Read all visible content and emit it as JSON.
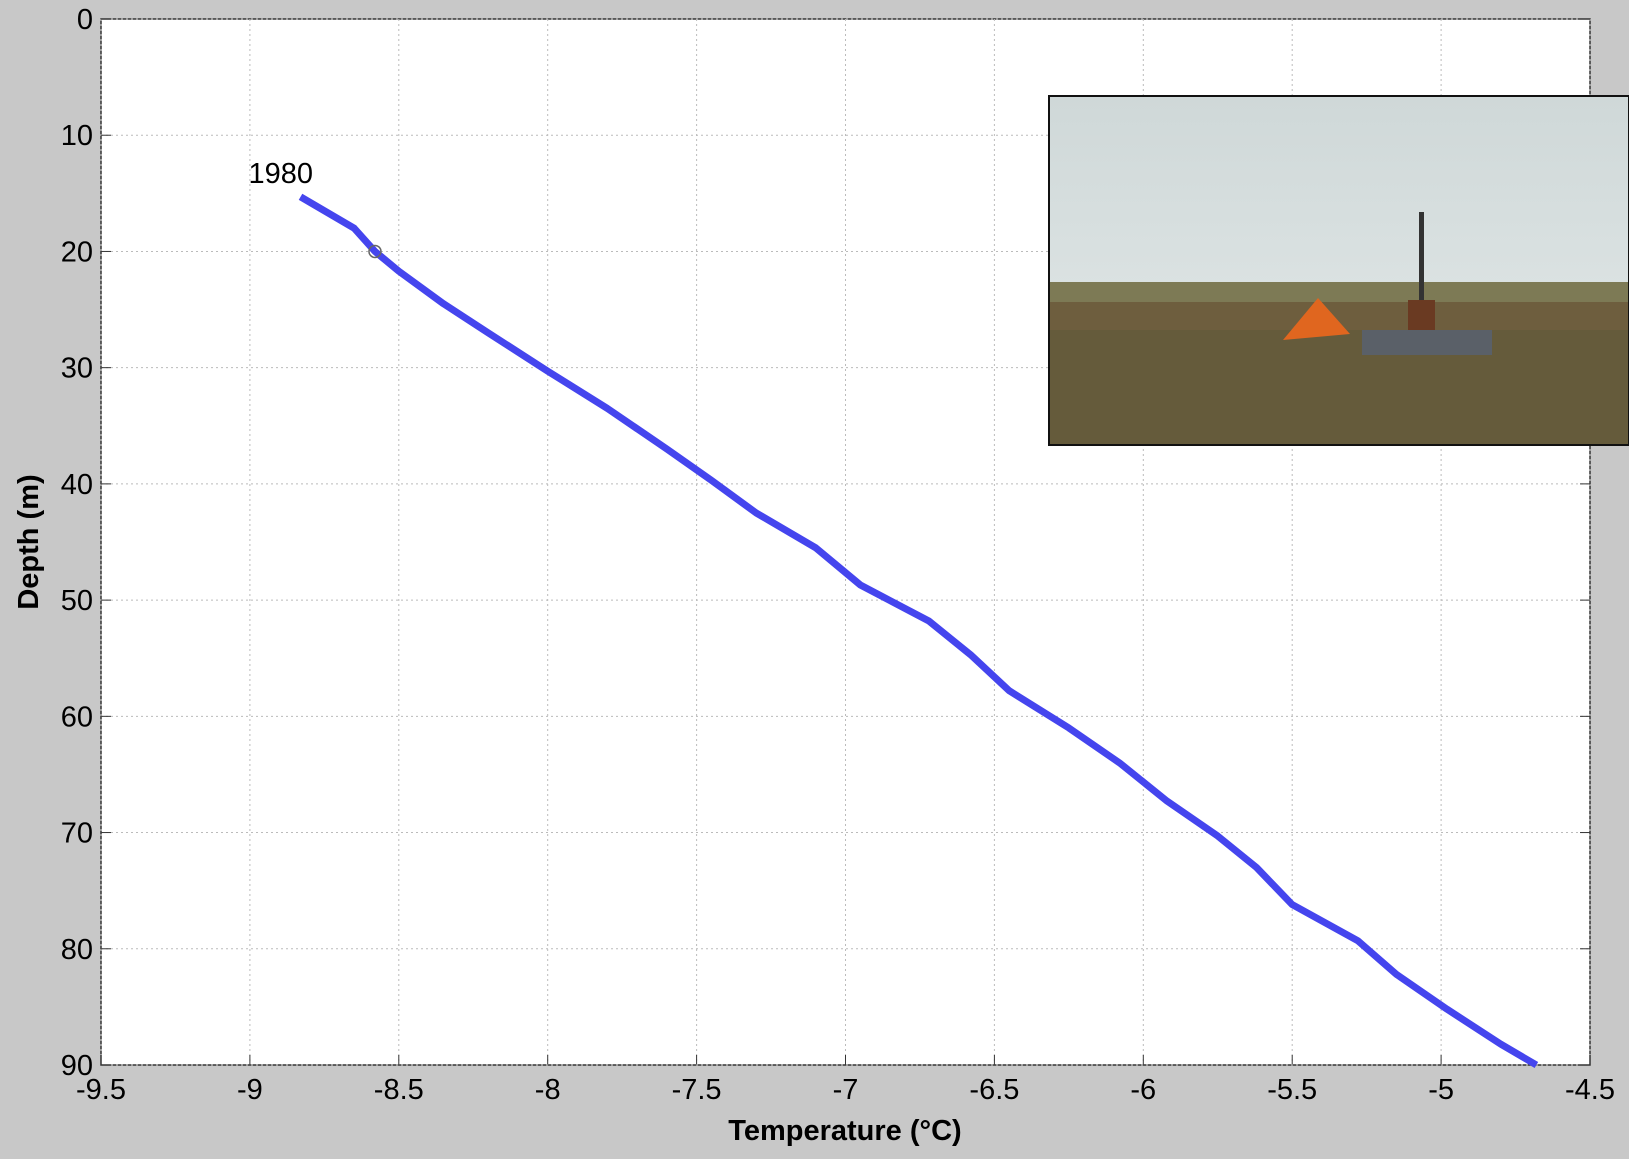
{
  "chart_data": {
    "type": "line",
    "annotation": "1980",
    "xlabel": "Temperature (°C)",
    "ylabel": "Depth (m)",
    "x": [
      -8.83,
      -8.65,
      -8.58,
      -8.5,
      -8.35,
      -8.2,
      -8.0,
      -7.8,
      -7.6,
      -7.45,
      -7.3,
      -7.1,
      -6.95,
      -6.72,
      -6.58,
      -6.45,
      -6.25,
      -6.08,
      -5.92,
      -5.75,
      -5.62,
      -5.5,
      -5.28,
      -5.15,
      -4.98,
      -4.8,
      -4.68
    ],
    "values": [
      15.3,
      18,
      20,
      21.7,
      24.5,
      27,
      30.3,
      33.5,
      37,
      39.7,
      42.5,
      45.5,
      48.7,
      51.8,
      54.7,
      57.8,
      61,
      64,
      67.3,
      70.3,
      73,
      76.2,
      79.3,
      82.2,
      85.2,
      88.2,
      90
    ],
    "color": "#4545ee",
    "marker": {
      "x": -8.58,
      "y": 20
    },
    "xlim": [
      -9.5,
      -4.5
    ],
    "xticks": [
      -9.5,
      -9,
      -8.5,
      -8,
      -7.5,
      -7,
      -6.5,
      -6,
      -5.5,
      -5,
      -4.5
    ],
    "ylim": [
      0,
      90
    ],
    "yticks": [
      0,
      10,
      20,
      30,
      40,
      50,
      60,
      70,
      80,
      90
    ],
    "y_inverted": true,
    "grid": true
  }
}
